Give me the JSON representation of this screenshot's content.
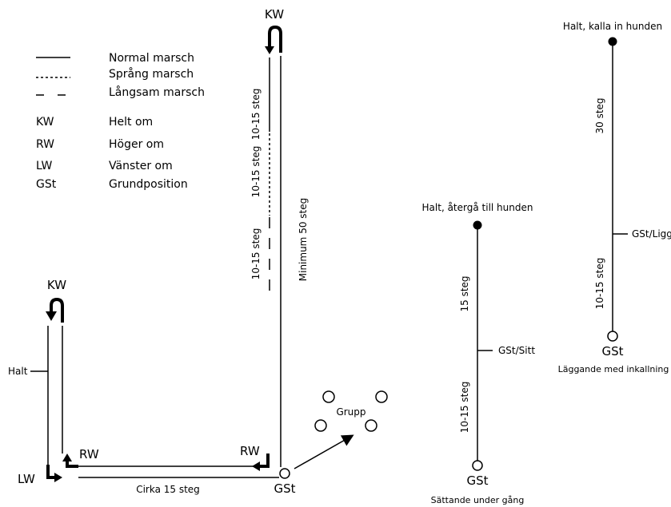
{
  "legend": {
    "normal": "Normal marsch",
    "sprang": "Språng marsch",
    "langsam": "Långsam marsch",
    "kw_abbr": "KW",
    "kw_text": "Helt om",
    "rw_abbr": "RW",
    "rw_text": "Höger om",
    "lw_abbr": "LW",
    "lw_text": "Vänster om",
    "gst_abbr": "GSt",
    "gst_text": "Grundposition"
  },
  "main_course": {
    "kw_top": "KW",
    "step_top": "10-15 steg",
    "step_mid": "10-15 steg",
    "step_low": "10-15 steg",
    "minimum": "Minimum 50 steg",
    "kw_left": "KW",
    "halt": "Halt",
    "rw_left": "RW",
    "lw": "LW",
    "rw_right": "RW",
    "cirka": "Cirka 15 steg",
    "gst": "GSt",
    "grupp": "Grupp"
  },
  "sit_exercise": {
    "halt_label": "Halt, återgå till hunden",
    "steps_top": "15 steg",
    "marker": "GSt/Sitt",
    "steps_bottom": "10-15 steg",
    "gst": "GSt",
    "caption": "Sättande under gång"
  },
  "down_exercise": {
    "halt_label": "Halt, kalla in hunden",
    "steps_top": "30 steg",
    "marker": "GSt/Ligg",
    "steps_bottom": "10-15 steg",
    "gst": "GSt",
    "caption": "Läggande med inkallning"
  }
}
